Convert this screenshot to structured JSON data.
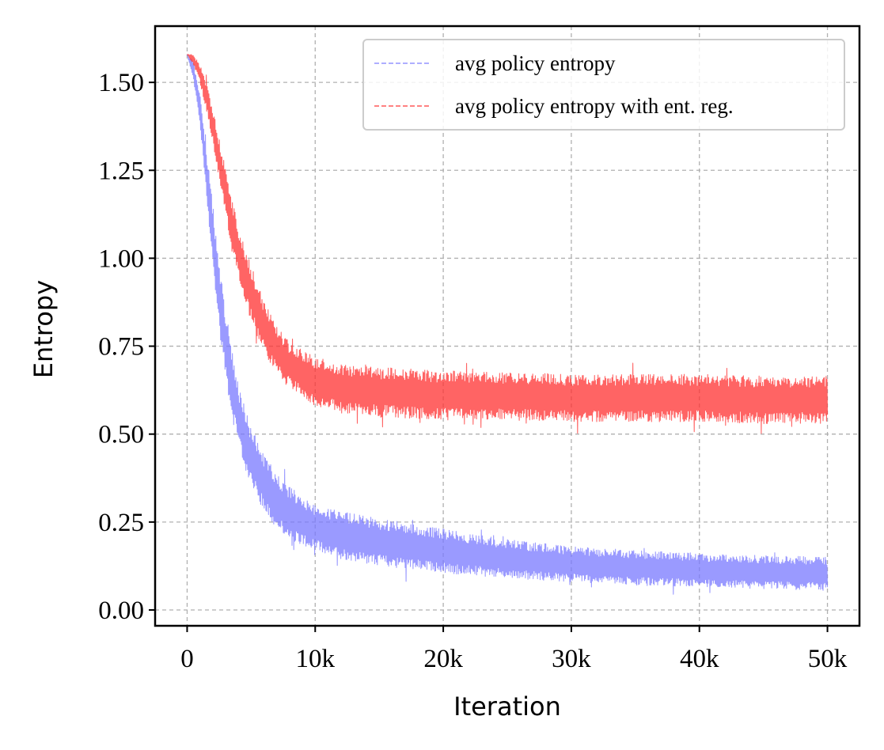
{
  "chart_data": {
    "type": "line",
    "title": "",
    "xlabel": "Iteration",
    "ylabel": "Entropy",
    "xlim": [
      -2500,
      52500
    ],
    "ylim": [
      -0.045,
      1.66
    ],
    "x_ticks": [
      {
        "value": 0,
        "label": "0"
      },
      {
        "value": 10000,
        "label": "10k"
      },
      {
        "value": 20000,
        "label": "20k"
      },
      {
        "value": 30000,
        "label": "30k"
      },
      {
        "value": 40000,
        "label": "40k"
      },
      {
        "value": 50000,
        "label": "50k"
      }
    ],
    "y_ticks": [
      {
        "value": 0.0,
        "label": "0.00"
      },
      {
        "value": 0.25,
        "label": "0.25"
      },
      {
        "value": 0.5,
        "label": "0.50"
      },
      {
        "value": 0.75,
        "label": "0.75"
      },
      {
        "value": 1.0,
        "label": "1.00"
      },
      {
        "value": 1.25,
        "label": "1.25"
      },
      {
        "value": 1.5,
        "label": "1.50"
      }
    ],
    "grid": true,
    "legend_position": "top-right",
    "series": [
      {
        "name": "avg policy entropy",
        "color": "#7878ff",
        "x": [
          0,
          500,
          1000,
          1500,
          2000,
          2500,
          3000,
          3500,
          4000,
          5000,
          6000,
          7000,
          8000,
          10000,
          12000,
          15000,
          20000,
          25000,
          30000,
          35000,
          40000,
          45000,
          50000
        ],
        "lower": [
          1.58,
          1.5,
          1.38,
          1.18,
          0.98,
          0.8,
          0.66,
          0.55,
          0.46,
          0.35,
          0.28,
          0.23,
          0.2,
          0.17,
          0.145,
          0.125,
          0.105,
          0.09,
          0.08,
          0.07,
          0.065,
          0.06,
          0.055
        ],
        "upper": [
          1.58,
          1.56,
          1.47,
          1.32,
          1.15,
          0.99,
          0.86,
          0.75,
          0.64,
          0.52,
          0.44,
          0.39,
          0.35,
          0.3,
          0.28,
          0.26,
          0.23,
          0.2,
          0.18,
          0.17,
          0.16,
          0.155,
          0.15
        ]
      },
      {
        "name": "avg policy entropy with ent. reg.",
        "color": "#ff3030",
        "x": [
          0,
          500,
          1000,
          1500,
          2000,
          2500,
          3000,
          3500,
          4000,
          5000,
          6000,
          7000,
          8000,
          10000,
          12000,
          15000,
          20000,
          25000,
          30000,
          35000,
          40000,
          45000,
          50000
        ],
        "lower": [
          1.58,
          1.55,
          1.5,
          1.42,
          1.33,
          1.22,
          1.12,
          1.02,
          0.94,
          0.82,
          0.73,
          0.67,
          0.63,
          0.58,
          0.56,
          0.55,
          0.54,
          0.54,
          0.535,
          0.535,
          0.535,
          0.53,
          0.53
        ],
        "upper": [
          1.58,
          1.58,
          1.55,
          1.5,
          1.43,
          1.34,
          1.26,
          1.17,
          1.09,
          0.98,
          0.88,
          0.81,
          0.76,
          0.72,
          0.7,
          0.69,
          0.68,
          0.675,
          0.67,
          0.67,
          0.67,
          0.665,
          0.665
        ]
      }
    ]
  }
}
